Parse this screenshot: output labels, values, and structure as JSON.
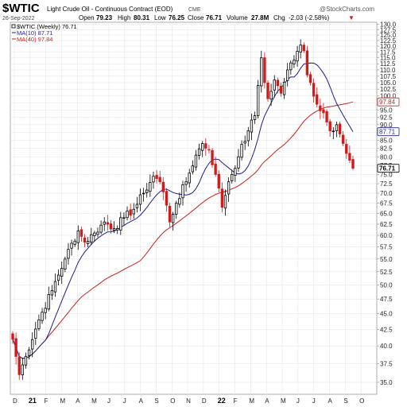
{
  "header": {
    "symbol": "$WTIC",
    "description": "Light Crude Oil - Continuous Contract (EOD)",
    "exchange": "CME",
    "date": "26-Sep-2022",
    "open_label": "Open",
    "open": "79.23",
    "high_label": "High",
    "high": "80.31",
    "low_label": "Low",
    "low": "76.25",
    "close_label": "Close",
    "close": "76.71",
    "volume_label": "Volume",
    "volume": "27.8M",
    "chg_label": "Chg",
    "chg": "-2.03 (-2.58%)",
    "chg_arrow": "▼",
    "watermark": "@StockCharts.com"
  },
  "legend": [
    {
      "text": "$WTIC (Weekly) 76.71",
      "color": "#000000"
    },
    {
      "text": "MA(10) 87.71",
      "color": "#1f1f8f"
    },
    {
      "text": "MA(40) 97.84",
      "color": "#cc1f1f"
    }
  ],
  "price_tags": {
    "ma40": "97.84",
    "ma10": "87.71",
    "last": "76.71"
  },
  "colors": {
    "up": "#000000",
    "down": "#d11a1a",
    "ma10": "#1f1f8f",
    "ma40": "#cc1f1f",
    "grid": "#e6e6e6"
  },
  "chart_data": {
    "type": "candlestick",
    "title": "$WTIC Light Crude Oil - Continuous Contract (EOD)",
    "timeframe": "Weekly",
    "y_scale": "log",
    "ylim": [
      33.5,
      131
    ],
    "y_ticks": [
      "35.0",
      "37.5",
      "40.0",
      "42.5",
      "45.0",
      "47.5",
      "50.0",
      "52.5",
      "55.0",
      "57.5",
      "60.0",
      "62.5",
      "65.0",
      "67.5",
      "70.0",
      "72.5",
      "75.0",
      "77.5",
      "80.0",
      "82.5",
      "85.0",
      "87.5",
      "90.0",
      "92.5",
      "95.0",
      "97.5",
      "100.0",
      "102.5",
      "105.0",
      "107.5",
      "110.0",
      "112.5",
      "115.0",
      "117.5",
      "120.0",
      "122.5",
      "125.0",
      "127.5",
      "130.0"
    ],
    "x_ticks": [
      "D",
      "21",
      "F",
      "M",
      "A",
      "M",
      "J",
      "J",
      "A",
      "S",
      "O",
      "N",
      "D",
      "22",
      "F",
      "M",
      "A",
      "M",
      "J",
      "J",
      "A",
      "S",
      "O"
    ],
    "x_year_ticks": [
      "21",
      "22"
    ],
    "anchors": [
      {
        "i": 0,
        "c": 41.0
      },
      {
        "i": 2,
        "c": 36.0
      },
      {
        "i": 4,
        "c": 38.5
      },
      {
        "i": 8,
        "c": 44.0
      },
      {
        "i": 12,
        "c": 49.0
      },
      {
        "i": 16,
        "c": 55.0
      },
      {
        "i": 20,
        "c": 61.0
      },
      {
        "i": 22,
        "c": 58.5
      },
      {
        "i": 25,
        "c": 60.5
      },
      {
        "i": 28,
        "c": 63.0
      },
      {
        "i": 31,
        "c": 61.5
      },
      {
        "i": 34,
        "c": 64.0
      },
      {
        "i": 37,
        "c": 66.0
      },
      {
        "i": 40,
        "c": 70.0
      },
      {
        "i": 43,
        "c": 74.5
      },
      {
        "i": 45,
        "c": 73.0
      },
      {
        "i": 47,
        "c": 67.0
      },
      {
        "i": 48,
        "c": 63.0
      },
      {
        "i": 50,
        "c": 67.5
      },
      {
        "i": 53,
        "c": 73.0
      },
      {
        "i": 56,
        "c": 80.5
      },
      {
        "i": 58,
        "c": 84.0
      },
      {
        "i": 60,
        "c": 82.0
      },
      {
        "i": 62,
        "c": 75.0
      },
      {
        "i": 64,
        "c": 66.5
      },
      {
        "i": 66,
        "c": 73.0
      },
      {
        "i": 69,
        "c": 80.0
      },
      {
        "i": 72,
        "c": 88.0
      },
      {
        "i": 74,
        "c": 93.0
      },
      {
        "i": 76,
        "c": 115.0
      },
      {
        "i": 77,
        "c": 105.0
      },
      {
        "i": 78,
        "c": 99.0
      },
      {
        "i": 80,
        "c": 106.0
      },
      {
        "i": 82,
        "c": 101.0
      },
      {
        "i": 84,
        "c": 110.0
      },
      {
        "i": 86,
        "c": 114.0
      },
      {
        "i": 88,
        "c": 120.5
      },
      {
        "i": 89,
        "c": 118.0
      },
      {
        "i": 90,
        "c": 108.0
      },
      {
        "i": 91,
        "c": 105.0
      },
      {
        "i": 93,
        "c": 97.0
      },
      {
        "i": 95,
        "c": 94.0
      },
      {
        "i": 97,
        "c": 88.0
      },
      {
        "i": 99,
        "c": 90.0
      },
      {
        "i": 100,
        "c": 87.0
      },
      {
        "i": 101,
        "c": 84.0
      },
      {
        "i": 102,
        "c": 81.0
      },
      {
        "i": 103,
        "c": 79.0
      },
      {
        "i": 104,
        "c": 76.71
      }
    ],
    "last_bar": {
      "open": 79.23,
      "high": 80.31,
      "low": 76.25,
      "close": 76.71
    },
    "ma10_last": 87.71,
    "ma40_last": 97.84
  }
}
